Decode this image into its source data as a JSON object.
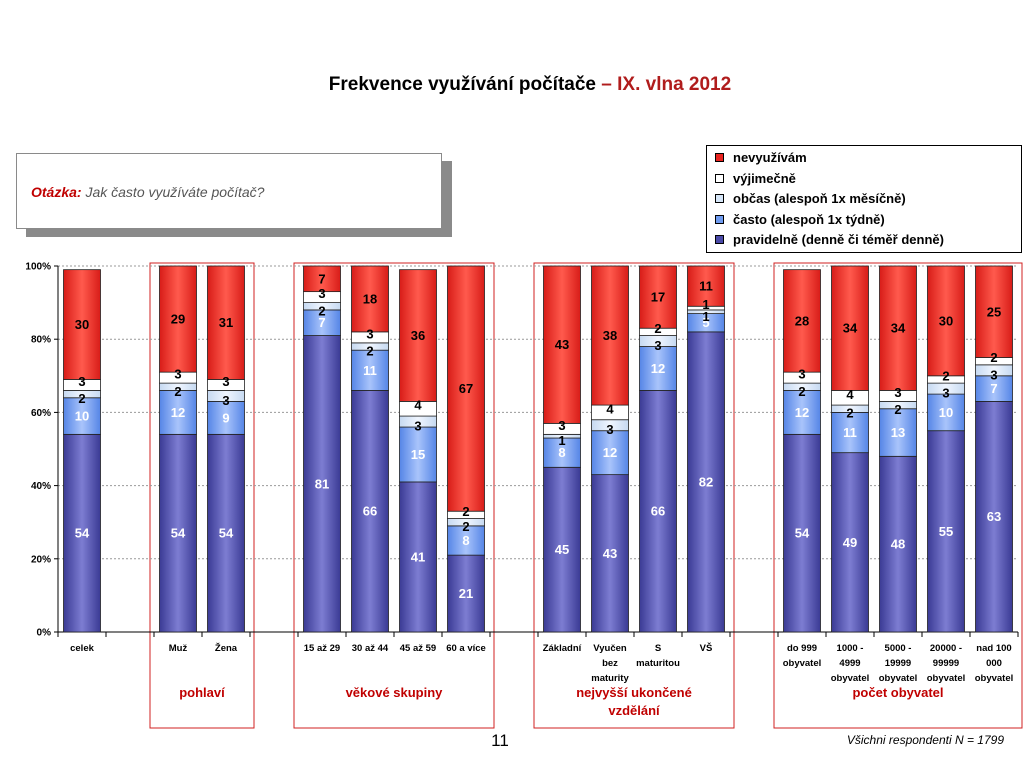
{
  "slide": {
    "title_main": "Frekvence využívání počítače",
    "title_highlight": "– IX. vlna 2012",
    "question_label": "Otázka:",
    "question_text": "Jak často využíváte počítač?",
    "footnote": "Všichni respondenti N = 1799",
    "page_number": "11"
  },
  "chart_data": {
    "type": "bar",
    "stacked": true,
    "ylim": [
      0,
      100
    ],
    "y_ticks": [
      "0%",
      "20%",
      "40%",
      "60%",
      "80%",
      "100%"
    ],
    "legend_position": "top-right",
    "legend": [
      {
        "name": "nevyužívám",
        "color": "#e8231f"
      },
      {
        "name": "výjimečně",
        "color": "#ffffff"
      },
      {
        "name": "občas (alespoň 1x měsíčně)",
        "color": "#d6e6f8"
      },
      {
        "name": "často (alespoň 1x týdně)",
        "color": "#6f9bf0"
      },
      {
        "name": "pravidelně (denně či téměř denně)",
        "color": "#4a4aa8"
      }
    ],
    "series_order_bottom_to_top": [
      "pravidelně (denně či téměř denně)",
      "často (alespoň 1x týdně)",
      "občas (alespoň 1x měsíčně)",
      "výjimečně",
      "nevyužívám"
    ],
    "categories": [
      {
        "name": "celek",
        "label_lines": [
          "celek"
        ],
        "slot": 0,
        "values": [
          54,
          10,
          2,
          3,
          30
        ]
      },
      {
        "name": "Muž",
        "label_lines": [
          "Muž"
        ],
        "slot": 2,
        "values": [
          54,
          12,
          2,
          3,
          29
        ]
      },
      {
        "name": "Žena",
        "label_lines": [
          "Žena"
        ],
        "slot": 3,
        "values": [
          54,
          9,
          3,
          3,
          31
        ]
      },
      {
        "name": "15 až 29",
        "label_lines": [
          "15 až 29"
        ],
        "slot": 5,
        "values": [
          81,
          7,
          2,
          3,
          7
        ]
      },
      {
        "name": "30 až 44",
        "label_lines": [
          "30 až 44"
        ],
        "slot": 6,
        "values": [
          66,
          11,
          2,
          3,
          18
        ]
      },
      {
        "name": "45 až 59",
        "label_lines": [
          "45 až 59"
        ],
        "slot": 7,
        "values": [
          41,
          15,
          3,
          4,
          36
        ]
      },
      {
        "name": "60 a více",
        "label_lines": [
          "60 a více"
        ],
        "slot": 8,
        "values": [
          21,
          8,
          2,
          2,
          67
        ]
      },
      {
        "name": "Základní",
        "label_lines": [
          "Základní"
        ],
        "slot": 10,
        "values": [
          45,
          8,
          1,
          3,
          43
        ]
      },
      {
        "name": "Vyučen bez maturity",
        "label_lines": [
          "Vyučen",
          "bez",
          "maturity"
        ],
        "slot": 11,
        "values": [
          43,
          12,
          3,
          4,
          38
        ]
      },
      {
        "name": "S maturitou",
        "label_lines": [
          "S",
          "maturitou"
        ],
        "slot": 12,
        "values": [
          66,
          12,
          3,
          2,
          17
        ]
      },
      {
        "name": "VŠ",
        "label_lines": [
          "VŠ"
        ],
        "slot": 13,
        "values": [
          82,
          5,
          1,
          1,
          11
        ]
      },
      {
        "name": "do 999 obyvatel",
        "label_lines": [
          "do 999",
          "obyvatel"
        ],
        "slot": 15,
        "values": [
          54,
          12,
          2,
          3,
          28
        ]
      },
      {
        "name": "1000 - 4999 obyvatel",
        "label_lines": [
          "1000 -",
          "4999",
          "obyvatel"
        ],
        "slot": 16,
        "values": [
          49,
          11,
          2,
          4,
          34
        ]
      },
      {
        "name": "5000 - 19999 obyvatel",
        "label_lines": [
          "5000 -",
          "19999",
          "obyvatel"
        ],
        "slot": 17,
        "values": [
          48,
          13,
          2,
          3,
          34
        ]
      },
      {
        "name": "20000 - 99999 obyvatel",
        "label_lines": [
          "20000 -",
          "99999",
          "obyvatel"
        ],
        "slot": 18,
        "values": [
          55,
          10,
          3,
          2,
          30
        ]
      },
      {
        "name": "nad 100 000 obyvatel",
        "label_lines": [
          "nad 100",
          "000",
          "obyvatel"
        ],
        "slot": 19,
        "values": [
          63,
          7,
          3,
          2,
          25
        ]
      }
    ],
    "groups": [
      {
        "label_lines": [
          "pohlaví"
        ],
        "slots": [
          2,
          3
        ]
      },
      {
        "label_lines": [
          "věkové skupiny"
        ],
        "slots": [
          5,
          8
        ]
      },
      {
        "label_lines": [
          "nejvyšší ukončené",
          "vzdělání"
        ],
        "slots": [
          10,
          13
        ]
      },
      {
        "label_lines": [
          "počet obyvatel"
        ],
        "slots": [
          15,
          19
        ]
      }
    ]
  }
}
